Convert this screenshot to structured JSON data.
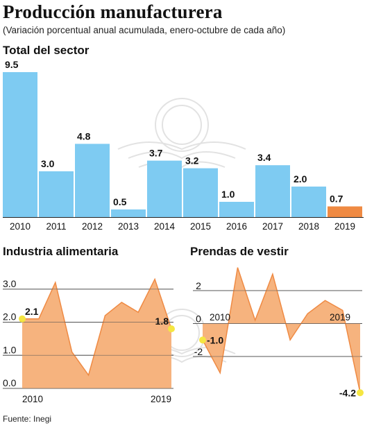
{
  "header": {
    "title": "Producción manufacturera",
    "subtitle": "(Variación porcentual anual acumulada, enero-octubre de cada año)"
  },
  "footer": {
    "source": "Fuente: Inegi"
  },
  "colors": {
    "bar": "#7ecbf2",
    "bar_highlight": "#ef8a43",
    "area_fill": "#f6b37e",
    "area_line": "#ef8a43",
    "marker": "#f5e642",
    "grid": "#555555"
  },
  "chart_data": [
    {
      "type": "bar",
      "title": "Total del sector",
      "categories": [
        "2010",
        "2011",
        "2012",
        "2013",
        "2014",
        "2015",
        "2016",
        "2017",
        "2018",
        "2019"
      ],
      "values": [
        9.5,
        3.0,
        4.8,
        0.5,
        3.7,
        3.2,
        1.0,
        3.4,
        2.0,
        0.7
      ],
      "data_labels": [
        "9.5",
        "3.0",
        "4.8",
        "0.5",
        "3.7",
        "3.2",
        "1.0",
        "3.4",
        "2.0",
        "0.7"
      ],
      "highlight_index": 9,
      "ylim": [
        0,
        9.5
      ],
      "grid": false
    },
    {
      "type": "area",
      "title": "Industria alimentaria",
      "x": [
        2010,
        2011,
        2012,
        2013,
        2014,
        2015,
        2016,
        2017,
        2018,
        2019
      ],
      "values": [
        2.1,
        2.1,
        3.2,
        1.1,
        0.4,
        2.2,
        2.6,
        2.3,
        3.3,
        1.8
      ],
      "x_tick_labels": [
        "2010",
        "2019"
      ],
      "y_ticks": [
        0.0,
        1.0,
        2.0,
        3.0
      ],
      "y_tick_labels": [
        "0.0",
        "1.0",
        "2.0",
        "3.0"
      ],
      "ylim": [
        0,
        3.5
      ],
      "grid": true,
      "point_labels": [
        {
          "index": 0,
          "text": "2.1"
        },
        {
          "index": 9,
          "text": "1.8"
        }
      ]
    },
    {
      "type": "area",
      "title": "Prendas de vestir",
      "x": [
        2010,
        2011,
        2012,
        2013,
        2014,
        2015,
        2016,
        2017,
        2018,
        2019
      ],
      "values": [
        -1.0,
        -3.0,
        3.4,
        0.2,
        3.0,
        -1.0,
        0.6,
        1.4,
        0.8,
        -4.2
      ],
      "x_tick_labels": [
        "2010",
        "2019"
      ],
      "y_ticks": [
        -2,
        0,
        2
      ],
      "y_tick_labels": [
        "-2",
        "0",
        "2"
      ],
      "ylim": [
        -4.4,
        3.6
      ],
      "grid": true,
      "point_labels": [
        {
          "index": 0,
          "text": "-1.0"
        },
        {
          "index": 9,
          "text": "-4.2"
        }
      ]
    }
  ]
}
